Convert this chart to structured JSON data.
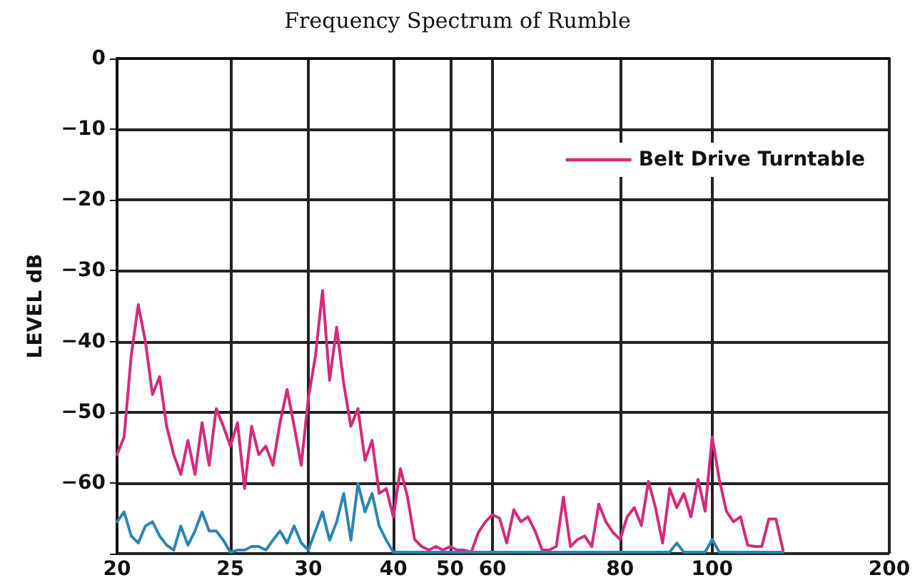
{
  "chart_data": {
    "type": "line",
    "title": "Frequency Spectrum of Rumble",
    "ylabel": "LEVEL dB",
    "categories": [
      "20",
      null,
      null,
      null,
      null,
      null,
      null,
      null,
      null,
      null,
      null,
      null,
      null,
      null,
      null,
      null,
      "25",
      null,
      null,
      null,
      null,
      null,
      null,
      null,
      null,
      null,
      null,
      "30",
      null,
      null,
      null,
      null,
      null,
      null,
      null,
      null,
      null,
      null,
      null,
      "40",
      null,
      null,
      null,
      null,
      null,
      null,
      null,
      "50",
      null,
      null,
      null,
      null,
      null,
      "60",
      null,
      null,
      null,
      null,
      null,
      null,
      null,
      null,
      null,
      null,
      null,
      null,
      null,
      null,
      null,
      null,
      null,
      "80",
      null,
      null,
      null,
      null,
      null,
      null,
      null,
      null,
      null,
      null,
      null,
      null,
      "100",
      null,
      null,
      null,
      null,
      null,
      null,
      null,
      null,
      null,
      null,
      null,
      null,
      null,
      null,
      null,
      null,
      null,
      null,
      null,
      null,
      null,
      null,
      null,
      null,
      "200"
    ],
    "series": [
      {
        "name": "Belt Drive Turntable",
        "color": "#d42a7c",
        "values": [
          -56,
          -53.5,
          -42,
          -34.8,
          -40,
          -47.5,
          -45,
          -52,
          -56,
          -58.8,
          -54,
          -58.8,
          -51.5,
          -57.5,
          -49.5,
          -52,
          -54.8,
          -51.5,
          -60.8,
          -52,
          -56,
          -54.8,
          -57.5,
          -51.5,
          -46.8,
          -52,
          -57.5,
          -48,
          -42.1,
          -32.8,
          -45.5,
          -38,
          -46,
          -52,
          -49.5,
          -56.8,
          -54,
          -61.5,
          -60.8,
          -64.8,
          -58,
          -62,
          -68,
          -69,
          -69.5,
          -69,
          -69.5,
          -69,
          -69.5,
          -69.5,
          -69.8,
          -67,
          -65.5,
          -64.5,
          -65,
          -68.5,
          -63.8,
          -65.5,
          -64.8,
          -66.8,
          -69.5,
          -69.5,
          -69,
          -62,
          -69,
          -68,
          -67.5,
          -69,
          -63,
          -65.5,
          -67,
          -68,
          -64.8,
          -63.5,
          -66,
          -59.8,
          -63.5,
          -68.5,
          -60.8,
          -63.5,
          -61.5,
          -64.8,
          -59.5,
          -64,
          -53.5,
          -59.5,
          -64,
          -65.5,
          -64.8,
          -68.8,
          -69,
          -69,
          -65.1,
          -65.1,
          -69.5,
          null,
          null,
          null,
          null,
          null,
          null,
          null,
          null,
          null,
          null,
          null,
          null,
          null,
          null,
          null
        ]
      },
      {
        "color": "#2a86b4",
        "values": [
          -65.5,
          -64.1,
          -67.5,
          -68.5,
          -66.1,
          -65.5,
          -67.5,
          -68.8,
          -69.5,
          -66.1,
          -68.8,
          -66.8,
          -64.1,
          -66.8,
          -66.8,
          -68.1,
          -69.8,
          -69.5,
          -69.5,
          -69,
          -69,
          -69.5,
          -68.1,
          -66.8,
          -68.5,
          -66.1,
          -68.5,
          -69.5,
          -66.8,
          -64.1,
          -68.1,
          -65.5,
          -61.5,
          -68.1,
          -60.1,
          -64.1,
          -61.5,
          -66.1,
          -68.1,
          -69.8,
          -69.8,
          -69.8,
          -69.8,
          -69.8,
          -69.8,
          -69.8,
          -69.8,
          -69.8,
          -69.8,
          -69.8,
          -69.8,
          -69.8,
          -69.8,
          -69.8,
          -69.8,
          -69.8,
          -69.8,
          -69.8,
          -69.8,
          -69.8,
          -69.8,
          -69.8,
          -69.8,
          -69.8,
          -69.8,
          -69.8,
          -69.8,
          -69.8,
          -69.8,
          -69.8,
          -69.8,
          -69.8,
          -69.8,
          -69.8,
          -69.8,
          -69.8,
          -69.8,
          -69.8,
          -69.8,
          -68.5,
          -69.8,
          -69.8,
          -69.8,
          -69.8,
          -68,
          -69.8,
          -69.8,
          -69.8,
          -69.8,
          -69.8,
          -69.8,
          -69.8,
          -69.8,
          -69.8,
          -69.8,
          null,
          null,
          null,
          null,
          null,
          null,
          null,
          null,
          null,
          null,
          null,
          null,
          null,
          null,
          null
        ]
      }
    ],
    "ylim": [
      -70,
      0
    ],
    "yticks": [
      0,
      -10,
      -20,
      -30,
      -40,
      -50,
      -60,
      {
        "value": -70,
        "label": null
      }
    ],
    "grid": true,
    "legend": "top right",
    "marker": "none",
    "line_style": "solid"
  }
}
